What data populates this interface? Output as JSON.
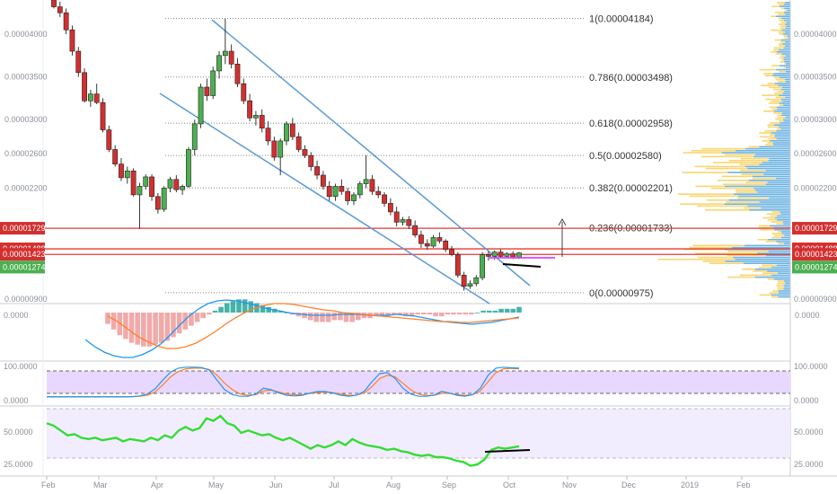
{
  "colors": {
    "up": "#4caf50",
    "down": "#d32f2f",
    "channel": "#5b9bd5",
    "level": "#e53935",
    "magenta": "#e040fb",
    "vp_blue": "#3a98d8",
    "vp_yellow": "#f5c842",
    "hist_pos": "#26a69a",
    "hist_neg": "#ef9a9a",
    "macd": "#2196f3",
    "signal": "#ff7f2a",
    "rsi": "#33dd33",
    "band": "#e8d8ff"
  },
  "chart_data": [
    {
      "type": "candlestick",
      "panel": "price",
      "ylim": [
        8.7e-06,
        4.5e-05
      ],
      "y_ticks": [
        "0.00004000",
        "0.00003500",
        "0.00003000",
        "0.00002600",
        "0.00002200",
        "0.00000900"
      ],
      "y_tick_values": [
        4e-05,
        3.5e-05,
        3e-05,
        2.6e-05,
        2.2e-05,
        9e-06
      ],
      "x_labels": [
        "Feb",
        "Mar",
        "Apr",
        "May",
        "Jun",
        "Jul",
        "Aug",
        "Sep",
        "Oct",
        "Nov",
        "Dec",
        "2019",
        "Feb"
      ],
      "fib_levels": [
        {
          "label": "1(0.00004184)",
          "value": 4.184e-05
        },
        {
          "label": "0.786(0.00003498)",
          "value": 3.498e-05
        },
        {
          "label": "0.618(0.00002958)",
          "value": 2.958e-05
        },
        {
          "label": "0.5(0.00002580)",
          "value": 2.58e-05
        },
        {
          "label": "0.382(0.00002201)",
          "value": 2.201e-05
        },
        {
          "label": "0.236(0.00001733)",
          "value": 1.733e-05
        },
        {
          "label": "0(0.00000975)",
          "value": 9.75e-06
        }
      ],
      "levels": [
        {
          "label": "0.00001729",
          "value": 1.729e-05,
          "color": "#d32f2f"
        },
        {
          "label": "0.00001488",
          "value": 1.488e-05,
          "color": "#d32f2f"
        },
        {
          "label": "0.00001423",
          "value": 1.423e-05,
          "color": "#d32f2f"
        },
        {
          "label": "0.00001274",
          "value": 1.274e-05,
          "color": "#4caf50"
        }
      ],
      "candles": [
        [
          4.4e-05,
          4.45e-05,
          4.3e-05,
          4.32e-05
        ],
        [
          4.32e-05,
          4.38e-05,
          4.2e-05,
          4.25e-05
        ],
        [
          4.25e-05,
          4.3e-05,
          4e-05,
          4.05e-05
        ],
        [
          4.05e-05,
          4.1e-05,
          3.75e-05,
          3.8e-05
        ],
        [
          3.8e-05,
          3.85e-05,
          3.5e-05,
          3.55e-05
        ],
        [
          3.55e-05,
          3.6e-05,
          3.2e-05,
          3.22e-05
        ],
        [
          3.22e-05,
          3.35e-05,
          3.15e-05,
          3.3e-05
        ],
        [
          3.3e-05,
          3.42e-05,
          3.18e-05,
          3.2e-05
        ],
        [
          3.2e-05,
          3.25e-05,
          2.85e-05,
          2.88e-05
        ],
        [
          2.88e-05,
          2.93e-05,
          2.62e-05,
          2.65e-05
        ],
        [
          2.65e-05,
          2.7e-05,
          2.45e-05,
          2.48e-05
        ],
        [
          2.48e-05,
          2.55e-05,
          2.28e-05,
          2.32e-05
        ],
        [
          2.32e-05,
          2.45e-05,
          2.25e-05,
          2.4e-05
        ],
        [
          2.4e-05,
          2.43e-05,
          2.1e-05,
          2.12e-05
        ],
        [
          2.12e-05,
          2.26e-05,
          1.72e-05,
          2.22e-05
        ],
        [
          2.22e-05,
          2.36e-05,
          2.18e-05,
          2.33e-05
        ],
        [
          2.33e-05,
          2.36e-05,
          2.05e-05,
          2.1e-05
        ],
        [
          2.1e-05,
          2.14e-05,
          1.9e-05,
          1.95e-05
        ],
        [
          1.95e-05,
          2.22e-05,
          1.92e-05,
          2.2e-05
        ],
        [
          2.2e-05,
          2.33e-05,
          2.15e-05,
          2.3e-05
        ],
        [
          2.3e-05,
          2.35e-05,
          2.15e-05,
          2.18e-05
        ],
        [
          2.18e-05,
          2.24e-05,
          2.12e-05,
          2.22e-05
        ],
        [
          2.22e-05,
          2.68e-05,
          2.2e-05,
          2.65e-05
        ],
        [
          2.65e-05,
          3e-05,
          2.58e-05,
          2.95e-05
        ],
        [
          2.95e-05,
          3.42e-05,
          2.9e-05,
          3.38e-05
        ],
        [
          3.38e-05,
          3.48e-05,
          3.22e-05,
          3.28e-05
        ],
        [
          3.28e-05,
          3.62e-05,
          3.24e-05,
          3.57e-05
        ],
        [
          3.57e-05,
          3.8e-05,
          3.48e-05,
          3.75e-05
        ],
        [
          3.75e-05,
          4.18e-05,
          3.65e-05,
          3.8e-05
        ],
        [
          3.8e-05,
          3.88e-05,
          3.6e-05,
          3.65e-05
        ],
        [
          3.65e-05,
          3.72e-05,
          3.38e-05,
          3.42e-05
        ],
        [
          3.42e-05,
          3.48e-05,
          3.18e-05,
          3.22e-05
        ],
        [
          3.22e-05,
          3.3e-05,
          2.98e-05,
          3.02e-05
        ],
        [
          3.02e-05,
          3.1e-05,
          2.93e-05,
          3.05e-05
        ],
        [
          3.05e-05,
          3.12e-05,
          2.85e-05,
          2.9e-05
        ],
        [
          2.9e-05,
          2.98e-05,
          2.7e-05,
          2.75e-05
        ],
        [
          2.75e-05,
          2.8e-05,
          2.52e-05,
          2.56e-05
        ],
        [
          2.56e-05,
          2.78e-05,
          2.35e-05,
          2.75e-05
        ],
        [
          2.75e-05,
          2.98e-05,
          2.7e-05,
          2.95e-05
        ],
        [
          2.95e-05,
          3.02e-05,
          2.76e-05,
          2.8e-05
        ],
        [
          2.8e-05,
          2.85e-05,
          2.62e-05,
          2.65e-05
        ],
        [
          2.65e-05,
          2.7e-05,
          2.55e-05,
          2.58e-05
        ],
        [
          2.58e-05,
          2.62e-05,
          2.4e-05,
          2.45e-05
        ],
        [
          2.45e-05,
          2.52e-05,
          2.3e-05,
          2.35e-05
        ],
        [
          2.35e-05,
          2.4e-05,
          2.18e-05,
          2.22e-05
        ],
        [
          2.22e-05,
          2.28e-05,
          2.05e-05,
          2.1e-05
        ],
        [
          2.1e-05,
          2.25e-05,
          2.05e-05,
          2.22e-05
        ],
        [
          2.22e-05,
          2.3e-05,
          2.12e-05,
          2.16e-05
        ],
        [
          2.16e-05,
          2.2e-05,
          2e-05,
          2.05e-05
        ],
        [
          2.05e-05,
          2.15e-05,
          2e-05,
          2.12e-05
        ],
        [
          2.12e-05,
          2.28e-05,
          2.08e-05,
          2.25e-05
        ],
        [
          2.25e-05,
          2.58e-05,
          2.2e-05,
          2.3e-05
        ],
        [
          2.3e-05,
          2.35e-05,
          2.12e-05,
          2.16e-05
        ],
        [
          2.16e-05,
          2.22e-05,
          2.08e-05,
          2.12e-05
        ],
        [
          2.12e-05,
          2.15e-05,
          1.98e-05,
          2.02e-05
        ],
        [
          2.02e-05,
          2.08e-05,
          1.88e-05,
          1.92e-05
        ],
        [
          1.92e-05,
          1.98e-05,
          1.75e-05,
          1.8e-05
        ],
        [
          1.8e-05,
          1.86e-05,
          1.76e-05,
          1.83e-05
        ],
        [
          1.83e-05,
          1.87e-05,
          1.72e-05,
          1.76e-05
        ],
        [
          1.76e-05,
          1.82e-05,
          1.62e-05,
          1.65e-05
        ],
        [
          1.65e-05,
          1.7e-05,
          1.5e-05,
          1.55e-05
        ],
        [
          1.55e-05,
          1.6e-05,
          1.48e-05,
          1.52e-05
        ],
        [
          1.52e-05,
          1.65e-05,
          1.5e-05,
          1.62e-05
        ],
        [
          1.62e-05,
          1.68e-05,
          1.55e-05,
          1.58e-05
        ],
        [
          1.58e-05,
          1.6e-05,
          1.45e-05,
          1.48e-05
        ],
        [
          1.48e-05,
          1.52e-05,
          1.4e-05,
          1.42e-05
        ],
        [
          1.42e-05,
          1.45e-05,
          1.15e-05,
          1.18e-05
        ],
        [
          1.18e-05,
          1.22e-05,
          1e-05,
          1.05e-05
        ],
        [
          1.05e-05,
          1.12e-05,
          1.02e-05,
          1.08e-05
        ],
        [
          1.08e-05,
          1.18e-05,
          1.05e-05,
          1.15e-05
        ],
        [
          1.15e-05,
          1.45e-05,
          1.12e-05,
          1.42e-05
        ],
        [
          1.42e-05,
          1.46e-05,
          1.35e-05,
          1.4e-05
        ],
        [
          1.4e-05,
          1.47e-05,
          1.36e-05,
          1.45e-05
        ],
        [
          1.45e-05,
          1.48e-05,
          1.38e-05,
          1.4e-05
        ],
        [
          1.4e-05,
          1.45e-05,
          1.38e-05,
          1.43e-05
        ],
        [
          1.43e-05,
          1.46e-05,
          1.37e-05,
          1.39e-05
        ],
        [
          1.39e-05,
          1.45e-05,
          1.37e-05,
          1.44e-05
        ]
      ]
    },
    {
      "type": "histogram+line",
      "panel": "macd",
      "y_ticks": [
        "0.0000"
      ],
      "histogram": [
        -6,
        -9,
        -12,
        -14,
        -16,
        -17,
        -18,
        -18,
        -17,
        -16,
        -15,
        -13,
        -11,
        -9,
        -7,
        -5,
        -3,
        -1,
        1,
        3,
        5,
        6,
        7,
        7,
        6,
        5,
        4,
        3,
        2,
        1,
        0,
        -1,
        -2,
        -3,
        -4,
        -5,
        -5,
        -5,
        -4,
        -4,
        -5,
        -5,
        -4,
        -3,
        -3,
        -2,
        -2,
        -2,
        -1,
        -1,
        -2,
        -2,
        -1,
        -1,
        -1,
        -2,
        -2,
        -1,
        -1,
        -1,
        -1,
        -1,
        0,
        1,
        1,
        1,
        2,
        2,
        2,
        3
      ],
      "macd_line": [
        -30,
        -38,
        -44,
        -48,
        -50,
        -50,
        -47,
        -42,
        -35,
        -25,
        -14,
        -4,
        4,
        10,
        13,
        14,
        13,
        11,
        8,
        5,
        3,
        1,
        -1,
        -2,
        -3,
        -3,
        -3,
        -2,
        -2,
        -2,
        -3,
        -3,
        -3,
        -2,
        -3,
        -4,
        -6,
        -8,
        -10,
        -11,
        -12,
        -13,
        -12,
        -11,
        -9,
        -7,
        -5
      ],
      "signal_line": [
        -4,
        -10,
        -18,
        -26,
        -32,
        -37,
        -40,
        -40,
        -38,
        -34,
        -28,
        -21,
        -13,
        -6,
        0,
        5,
        8,
        10,
        10,
        9,
        7,
        5,
        3,
        2,
        0,
        -1,
        -2,
        -3,
        -4,
        -5,
        -6,
        -7,
        -8,
        -9,
        -10,
        -10,
        -11,
        -11,
        -10,
        -9,
        -8,
        -7,
        -6
      ]
    },
    {
      "type": "line",
      "panel": "stoch",
      "y_ticks": [
        "100.0000",
        "0.0000"
      ],
      "k_line": [
        3,
        3,
        3,
        3,
        3,
        3,
        3,
        3,
        3,
        3,
        3,
        4,
        6,
        12,
        28,
        55,
        80,
        92,
        95,
        95,
        94,
        86,
        55,
        25,
        10,
        5,
        5,
        12,
        30,
        25,
        15,
        8,
        6,
        8,
        15,
        20,
        20,
        15,
        8,
        5,
        8,
        20,
        50,
        75,
        78,
        60,
        30,
        12,
        5,
        5,
        8,
        20,
        15,
        8,
        5,
        10,
        30,
        70,
        92,
        95,
        93,
        92
      ],
      "d_line": [
        4,
        4,
        4,
        4,
        4,
        4,
        4,
        4,
        4,
        4,
        4,
        4,
        5,
        8,
        18,
        40,
        65,
        82,
        90,
        92,
        92,
        88,
        70,
        45,
        25,
        12,
        8,
        10,
        22,
        24,
        18,
        12,
        10,
        10,
        14,
        17,
        18,
        16,
        12,
        8,
        9,
        15,
        35,
        60,
        70,
        65,
        45,
        25,
        12,
        8,
        8,
        14,
        14,
        10,
        8,
        10,
        22,
        50,
        78,
        90,
        91,
        90
      ]
    },
    {
      "type": "line",
      "panel": "rsi",
      "y_ticks": [
        "50.0000",
        "25.0000"
      ],
      "values": [
        58,
        56,
        52,
        48,
        49,
        46,
        45,
        46,
        44,
        45,
        46,
        43,
        45,
        44,
        43,
        46,
        44,
        48,
        46,
        52,
        55,
        52,
        54,
        62,
        60,
        64,
        58,
        56,
        50,
        52,
        50,
        48,
        49,
        46,
        44,
        46,
        43,
        40,
        37,
        40,
        38,
        40,
        43,
        40,
        45,
        42,
        40,
        39,
        38,
        36,
        37,
        35,
        34,
        32,
        31,
        32,
        30,
        30,
        29,
        27,
        26,
        23,
        24,
        28,
        36,
        38,
        37,
        38,
        39
      ]
    }
  ]
}
